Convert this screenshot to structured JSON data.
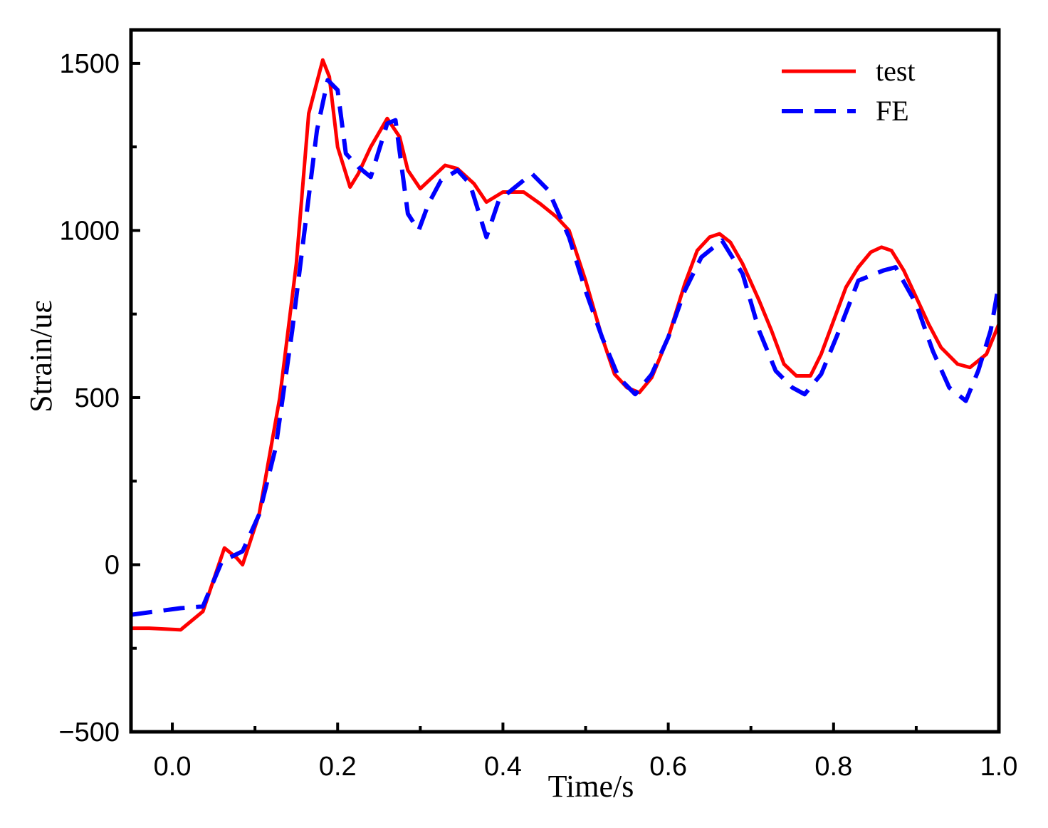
{
  "chart_data": {
    "type": "line",
    "title": "",
    "xlabel": "Time/s",
    "ylabel": "Strain/uε",
    "xlim": [
      -0.05,
      1.0
    ],
    "ylim": [
      -500,
      1600
    ],
    "xticks": [
      0.0,
      0.2,
      0.4,
      0.6,
      0.8,
      1.0
    ],
    "xtick_labels": [
      "0.0",
      "0.2",
      "0.4",
      "0.6",
      "0.8",
      "1.0"
    ],
    "yticks": [
      -500,
      0,
      500,
      1000,
      1500
    ],
    "ytick_labels": [
      "−500",
      "0",
      "500",
      "1000",
      "1500"
    ],
    "grid": false,
    "legend_position": "top-right",
    "series": [
      {
        "name": "test",
        "color": "#ff0000",
        "style": "solid",
        "x": [
          -0.05,
          -0.028,
          0.01,
          0.037,
          0.063,
          0.078,
          0.085,
          0.105,
          0.13,
          0.15,
          0.165,
          0.182,
          0.19,
          0.2,
          0.215,
          0.225,
          0.24,
          0.26,
          0.275,
          0.285,
          0.3,
          0.315,
          0.33,
          0.345,
          0.365,
          0.38,
          0.4,
          0.425,
          0.445,
          0.465,
          0.48,
          0.5,
          0.52,
          0.535,
          0.55,
          0.565,
          0.58,
          0.6,
          0.62,
          0.635,
          0.65,
          0.662,
          0.675,
          0.69,
          0.71,
          0.725,
          0.74,
          0.755,
          0.772,
          0.785,
          0.8,
          0.815,
          0.83,
          0.845,
          0.858,
          0.87,
          0.885,
          0.9,
          0.915,
          0.93,
          0.95,
          0.965,
          0.985,
          1.0
        ],
        "y": [
          -190,
          -190,
          -195,
          -140,
          50,
          20,
          0,
          150,
          500,
          900,
          1350,
          1510,
          1460,
          1250,
          1130,
          1170,
          1250,
          1335,
          1280,
          1180,
          1125,
          1160,
          1195,
          1185,
          1140,
          1085,
          1115,
          1115,
          1080,
          1040,
          1000,
          850,
          680,
          570,
          530,
          515,
          560,
          680,
          840,
          940,
          980,
          990,
          965,
          900,
          790,
          700,
          600,
          565,
          565,
          630,
          730,
          830,
          890,
          935,
          950,
          940,
          880,
          800,
          720,
          650,
          600,
          590,
          630,
          720
        ]
      },
      {
        "name": "FE",
        "color": "#0000ff",
        "style": "dashed",
        "x": [
          -0.05,
          -0.02,
          0.01,
          0.037,
          0.06,
          0.085,
          0.105,
          0.125,
          0.145,
          0.16,
          0.175,
          0.188,
          0.2,
          0.21,
          0.225,
          0.24,
          0.26,
          0.27,
          0.285,
          0.298,
          0.31,
          0.325,
          0.345,
          0.36,
          0.38,
          0.395,
          0.415,
          0.435,
          0.455,
          0.48,
          0.5,
          0.52,
          0.54,
          0.56,
          0.58,
          0.6,
          0.62,
          0.64,
          0.665,
          0.69,
          0.71,
          0.73,
          0.75,
          0.765,
          0.785,
          0.805,
          0.83,
          0.86,
          0.875,
          0.9,
          0.92,
          0.94,
          0.96,
          0.975,
          0.99,
          1.0
        ],
        "y": [
          -150,
          -140,
          -130,
          -125,
          10,
          40,
          150,
          350,
          700,
          1000,
          1300,
          1450,
          1420,
          1230,
          1190,
          1160,
          1320,
          1330,
          1050,
          1000,
          1080,
          1150,
          1180,
          1140,
          980,
          1090,
          1130,
          1170,
          1120,
          980,
          820,
          680,
          560,
          510,
          570,
          680,
          820,
          920,
          970,
          870,
          700,
          580,
          530,
          510,
          570,
          690,
          850,
          880,
          890,
          780,
          640,
          530,
          490,
          580,
          700,
          840
        ]
      }
    ]
  }
}
